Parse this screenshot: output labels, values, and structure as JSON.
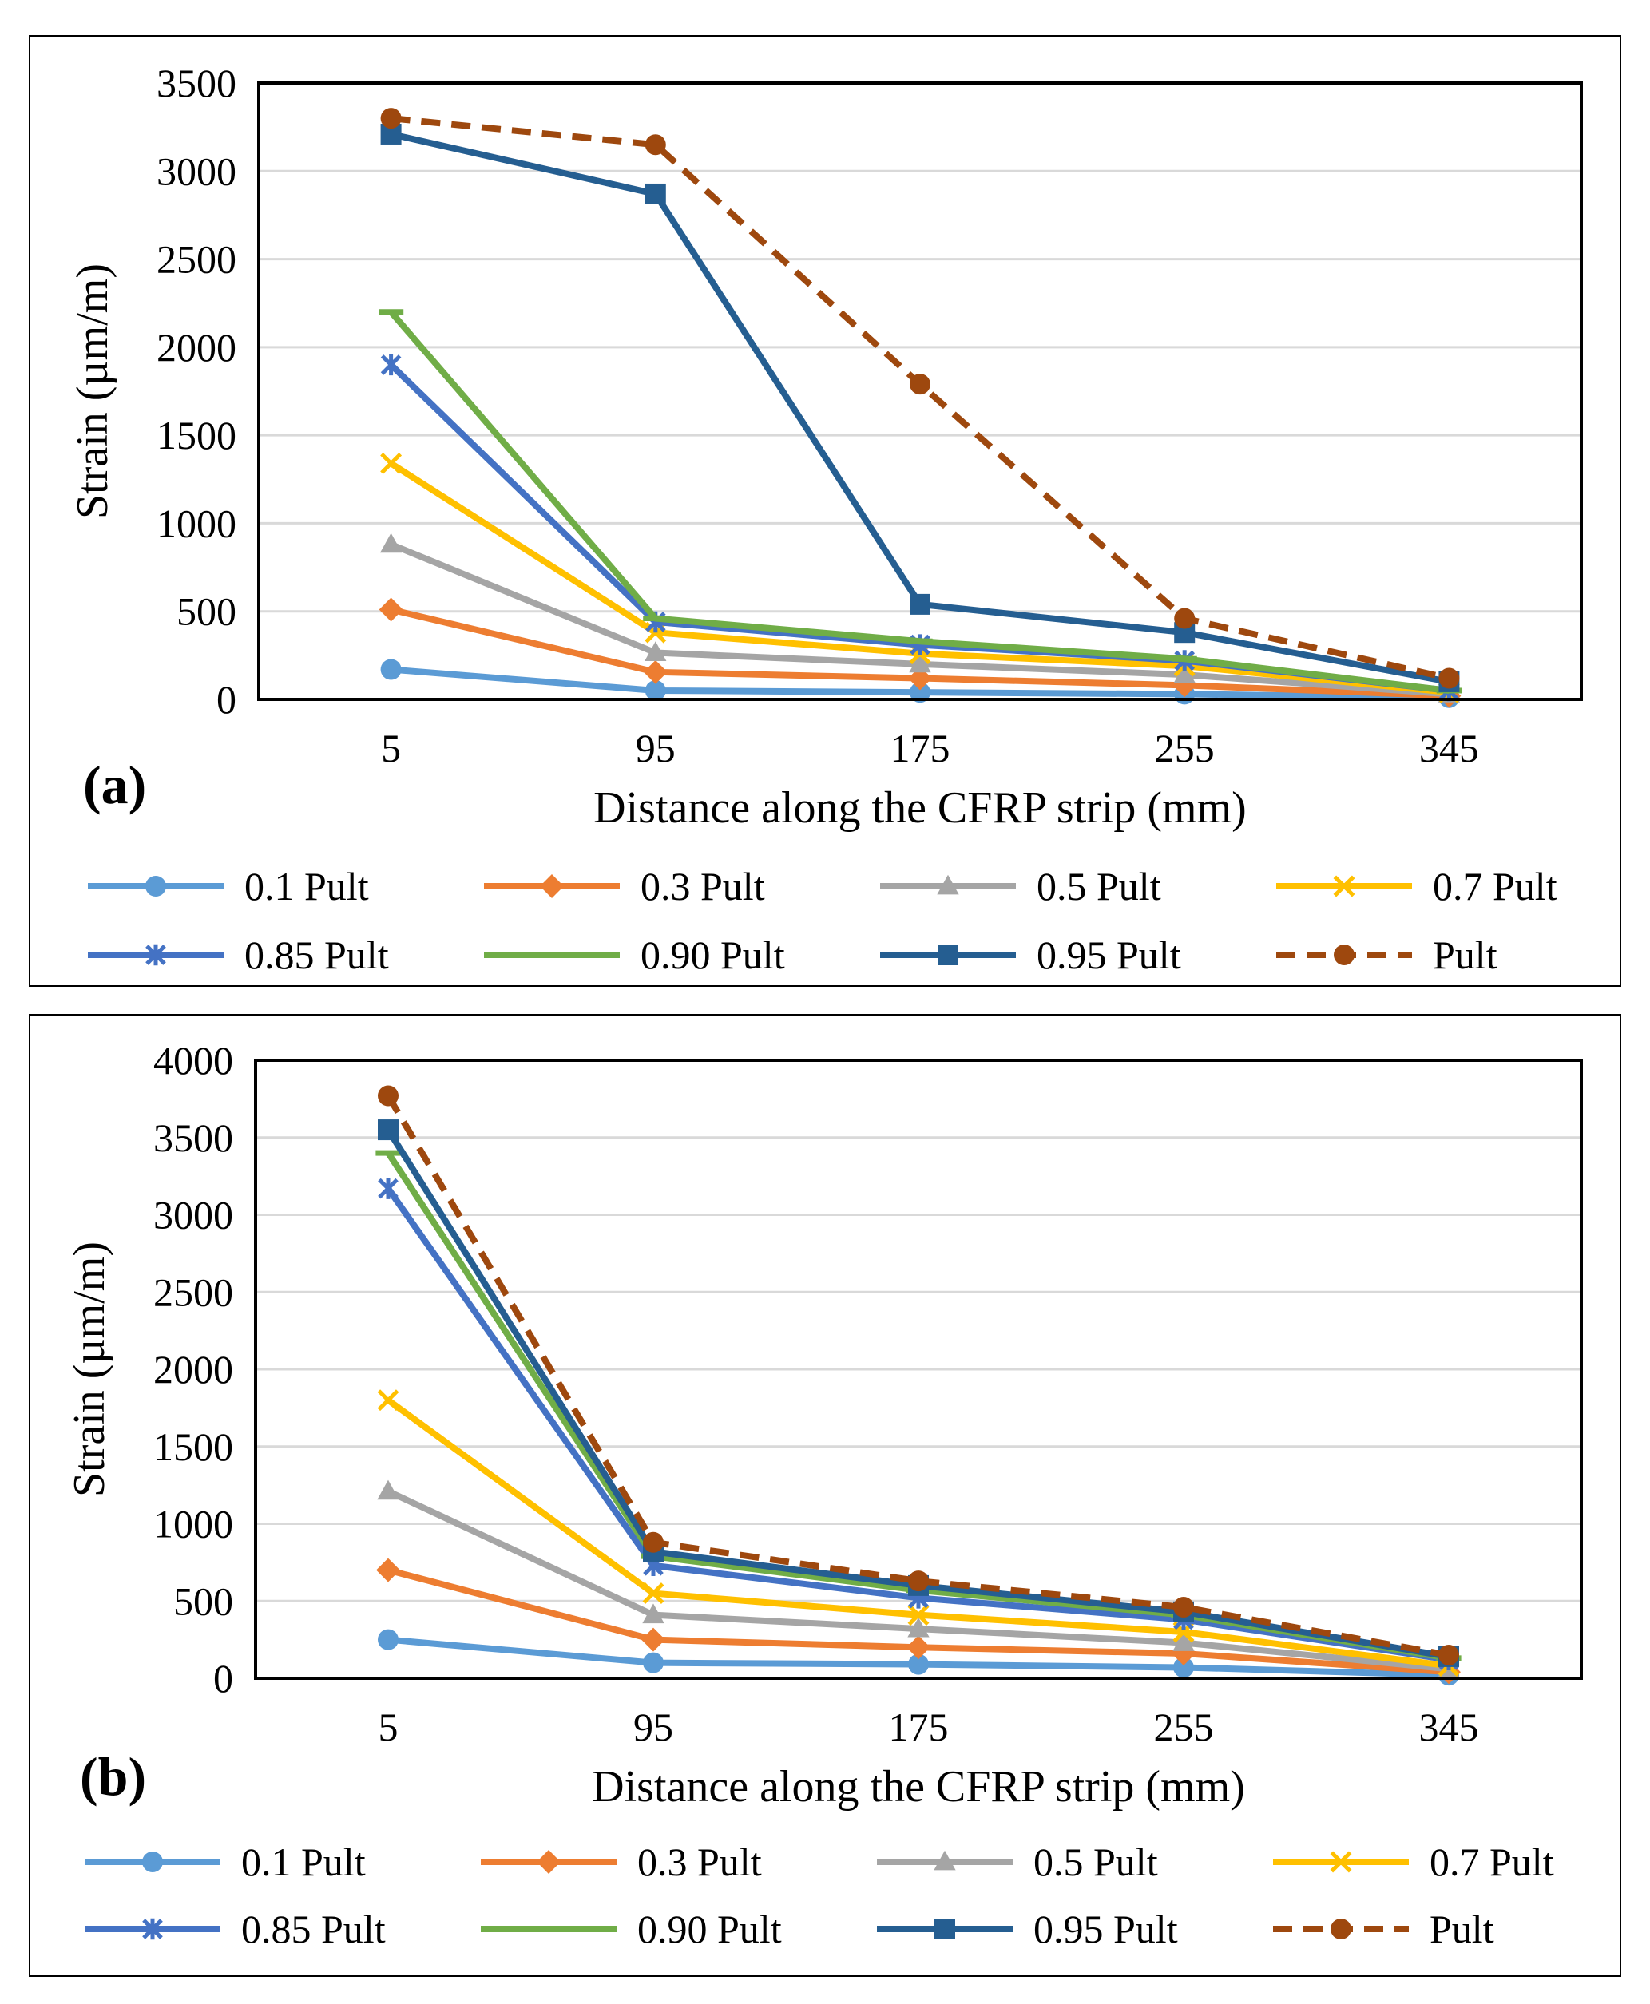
{
  "chart_data": [
    {
      "type": "line",
      "panel_label": "(a)",
      "xlabel": "Distance along the CFRP strip (mm)",
      "ylabel": "Strain (µm/m)",
      "categories": [
        "5",
        "95",
        "175",
        "255",
        "345"
      ],
      "ylim": [
        0,
        3500
      ],
      "yticks": [
        0,
        500,
        1000,
        1500,
        2000,
        2500,
        3000,
        3500
      ],
      "ytick_labels": [
        "0",
        "500",
        "1000",
        "1500",
        "2000",
        "2500",
        "3000",
        "3500"
      ],
      "grid": true,
      "legend_position": "bottom",
      "series": [
        {
          "name": "0.1 Pult",
          "values": [
            170,
            50,
            40,
            30,
            10
          ]
        },
        {
          "name": "0.3 Pult",
          "values": [
            510,
            155,
            120,
            80,
            20
          ]
        },
        {
          "name": "0.5 Pult",
          "values": [
            880,
            265,
            200,
            140,
            30
          ]
        },
        {
          "name": "0.7 Pult",
          "values": [
            1340,
            380,
            260,
            190,
            40
          ]
        },
        {
          "name": "0.85 Pult",
          "values": [
            1900,
            440,
            310,
            220,
            50
          ]
        },
        {
          "name": "0.90 Pult",
          "values": [
            2200,
            460,
            330,
            230,
            50
          ]
        },
        {
          "name": "0.95 Pult",
          "values": [
            3210,
            2870,
            540,
            380,
            100
          ]
        },
        {
          "name": "Pult",
          "values": [
            3300,
            3150,
            1790,
            460,
            120
          ]
        }
      ]
    },
    {
      "type": "line",
      "panel_label": "(b)",
      "xlabel": "Distance along the CFRP strip (mm)",
      "ylabel": "Strain (µm/m)",
      "categories": [
        "5",
        "95",
        "175",
        "255",
        "345"
      ],
      "ylim": [
        0,
        4000
      ],
      "yticks": [
        0,
        500,
        1000,
        1500,
        2000,
        2500,
        3000,
        3500,
        4000
      ],
      "ytick_labels": [
        "0",
        "500",
        "1000",
        "1500",
        "2000",
        "2500",
        "3000",
        "3500",
        "4000"
      ],
      "grid": true,
      "legend_position": "bottom",
      "series": [
        {
          "name": "0.1 Pult",
          "values": [
            250,
            100,
            90,
            70,
            20
          ]
        },
        {
          "name": "0.3 Pult",
          "values": [
            700,
            250,
            200,
            160,
            40
          ]
        },
        {
          "name": "0.5 Pult",
          "values": [
            1210,
            410,
            320,
            230,
            60
          ]
        },
        {
          "name": "0.7 Pult",
          "values": [
            1800,
            550,
            410,
            300,
            80
          ]
        },
        {
          "name": "0.85 Pult",
          "values": [
            3170,
            730,
            520,
            380,
            120
          ]
        },
        {
          "name": "0.90 Pult",
          "values": [
            3400,
            790,
            570,
            410,
            130
          ]
        },
        {
          "name": "0.95 Pult",
          "values": [
            3550,
            820,
            600,
            430,
            140
          ]
        },
        {
          "name": "Pult",
          "values": [
            3770,
            880,
            630,
            460,
            150
          ]
        }
      ]
    }
  ],
  "series_styles": [
    {
      "color": "#5B9BD5",
      "marker": "circle",
      "dash": false
    },
    {
      "color": "#ED7D31",
      "marker": "diamond",
      "dash": false
    },
    {
      "color": "#A5A5A5",
      "marker": "triangle",
      "dash": false
    },
    {
      "color": "#FFC000",
      "marker": "x",
      "dash": false
    },
    {
      "color": "#4472C4",
      "marker": "star",
      "dash": false
    },
    {
      "color": "#70AD47",
      "marker": "dash",
      "dash": false
    },
    {
      "color": "#255E91",
      "marker": "square",
      "dash": false
    },
    {
      "color": "#9E480E",
      "marker": "circle",
      "dash": true
    }
  ]
}
